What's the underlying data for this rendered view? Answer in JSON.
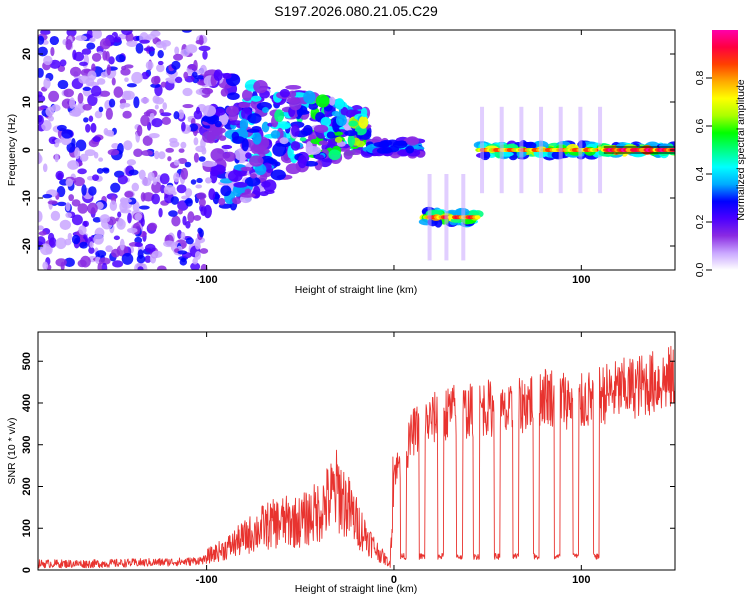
{
  "title": "S197.2026.080.21.05.C29",
  "chart_data": [
    {
      "type": "heatmap",
      "name": "spectrogram",
      "xlabel": "Height of straight line (km)",
      "ylabel": "Frequency (Hz)",
      "xlim": [
        -190,
        150
      ],
      "ylim": [
        -25,
        25
      ],
      "xticks": [
        -100,
        0,
        100
      ],
      "xtick_labels": [
        "-100",
        "",
        "100"
      ],
      "yticks": [
        -20,
        -10,
        0,
        10,
        20
      ],
      "ytick_labels": [
        "-20",
        "-10",
        "0",
        "10",
        "20"
      ],
      "colorbar": {
        "label": "Normalized spectral amplitude",
        "range": [
          0,
          1
        ],
        "ticks": [
          0.0,
          0.2,
          0.4,
          0.6,
          0.8
        ],
        "tick_labels": [
          "0.0",
          "0.2",
          "0.4",
          "0.6",
          "0.8"
        ],
        "colors": [
          "#ffffff",
          "#c9a6ff",
          "#8a2be2",
          "#4b00ff",
          "#0000ff",
          "#00aaff",
          "#00ffff",
          "#00ff80",
          "#00ff00",
          "#aaff00",
          "#ffff00",
          "#ffaa00",
          "#ff4000",
          "#ff0040",
          "#ff00aa"
        ]
      },
      "features": [
        {
          "label": "noise",
          "x_range": [
            -190,
            -100
          ],
          "freq": 0,
          "freq_spread": 25,
          "amplitude": 0.15
        },
        {
          "label": "emerging-signal",
          "x_range": [
            -100,
            -15
          ],
          "freq": 2,
          "freq_spread": 6,
          "amplitude": 0.35
        },
        {
          "label": "tone-1",
          "x_range": [
            -15,
            15
          ],
          "freq": 0.5,
          "freq_spread": 1.5,
          "amplitude": 0.45
        },
        {
          "label": "shifted-tone",
          "x_range": [
            17,
            45
          ],
          "freq": -14,
          "freq_spread": 1.2,
          "amplitude": 0.9
        },
        {
          "label": "tone-2",
          "x_range": [
            45,
            112
          ],
          "freq": 0,
          "freq_spread": 1.2,
          "amplitude": 0.85
        },
        {
          "label": "tone-3",
          "x_range": [
            112,
            150
          ],
          "freq": 0,
          "freq_spread": 0.8,
          "amplitude": 0.97
        }
      ]
    },
    {
      "type": "line",
      "name": "snr",
      "xlabel": "Height of straight line (km)",
      "ylabel": "SNR (10 * v/v)",
      "xlim": [
        -190,
        150
      ],
      "ylim": [
        0,
        570
      ],
      "xticks": [
        -100,
        0,
        100
      ],
      "xtick_labels": [
        "-100",
        "0",
        "100"
      ],
      "yticks": [
        0,
        100,
        200,
        300,
        400,
        500
      ],
      "ytick_labels": [
        "0",
        "100",
        "200",
        "300",
        "400",
        "500"
      ],
      "color": "#e8332f",
      "x": [
        -190,
        -160,
        -130,
        -110,
        -100,
        -90,
        -80,
        -70,
        -60,
        -50,
        -40,
        -30,
        -20,
        -10,
        -2,
        0,
        5,
        10,
        20,
        30,
        40,
        50,
        60,
        70,
        80,
        90,
        100,
        110,
        120,
        130,
        140,
        150
      ],
      "values": [
        15,
        15,
        18,
        20,
        25,
        40,
        60,
        80,
        90,
        90,
        110,
        150,
        90,
        40,
        10,
        240,
        260,
        330,
        360,
        380,
        380,
        390,
        370,
        400,
        420,
        410,
        400,
        420,
        430,
        440,
        450,
        460
      ],
      "dropouts_x": [
        5,
        15,
        25,
        35,
        44,
        55,
        65,
        76,
        87,
        97,
        108
      ],
      "dropout_value": 25
    }
  ]
}
